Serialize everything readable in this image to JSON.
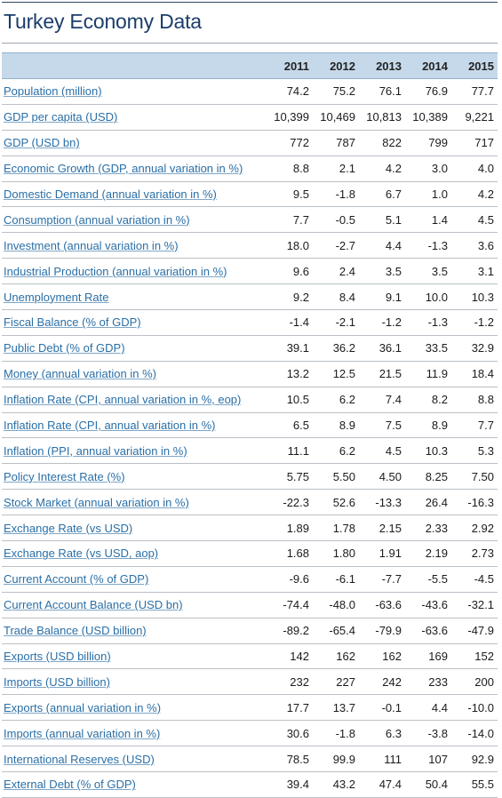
{
  "title": "Turkey Economy Data",
  "years": [
    "2011",
    "2012",
    "2013",
    "2014",
    "2015"
  ],
  "rows": [
    {
      "label": "Population (million)",
      "values": [
        "74.2",
        "75.2",
        "76.1",
        "76.9",
        "77.7"
      ]
    },
    {
      "label": "GDP per capita (USD)",
      "values": [
        "10,399",
        "10,469",
        "10,813",
        "10,389",
        "9,221"
      ]
    },
    {
      "label": "GDP (USD bn)",
      "values": [
        "772",
        "787",
        "822",
        "799",
        "717"
      ]
    },
    {
      "label": "Economic Growth (GDP, annual variation in %)",
      "values": [
        "8.8",
        "2.1",
        "4.2",
        "3.0",
        "4.0"
      ]
    },
    {
      "label": "Domestic Demand (annual variation in %)",
      "values": [
        "9.5",
        "-1.8",
        "6.7",
        "1.0",
        "4.2"
      ]
    },
    {
      "label": "Consumption (annual variation in %)",
      "values": [
        "7.7",
        "-0.5",
        "5.1",
        "1.4",
        "4.5"
      ]
    },
    {
      "label": "Investment (annual variation in %)",
      "values": [
        "18.0",
        "-2.7",
        "4.4",
        "-1.3",
        "3.6"
      ]
    },
    {
      "label": "Industrial Production (annual variation in %)",
      "values": [
        "9.6",
        "2.4",
        "3.5",
        "3.5",
        "3.1"
      ]
    },
    {
      "label": "Unemployment Rate",
      "values": [
        "9.2",
        "8.4",
        "9.1",
        "10.0",
        "10.3"
      ]
    },
    {
      "label": "Fiscal Balance (% of GDP)",
      "values": [
        "-1.4",
        "-2.1",
        "-1.2",
        "-1.3",
        "-1.2"
      ]
    },
    {
      "label": "Public Debt (% of GDP)",
      "values": [
        "39.1",
        "36.2",
        "36.1",
        "33.5",
        "32.9"
      ]
    },
    {
      "label": "Money (annual variation in %)",
      "values": [
        "13.2",
        "12.5",
        "21.5",
        "11.9",
        "18.4"
      ]
    },
    {
      "label": "Inflation Rate (CPI, annual variation in %, eop)",
      "values": [
        "10.5",
        "6.2",
        "7.4",
        "8.2",
        "8.8"
      ]
    },
    {
      "label": "Inflation Rate (CPI, annual variation in %)",
      "values": [
        "6.5",
        "8.9",
        "7.5",
        "8.9",
        "7.7"
      ]
    },
    {
      "label": "Inflation (PPI, annual variation in %)",
      "values": [
        "11.1",
        "6.2",
        "4.5",
        "10.3",
        "5.3"
      ]
    },
    {
      "label": "Policy Interest Rate (%)",
      "values": [
        "5.75",
        "5.50",
        "4.50",
        "8.25",
        "7.50"
      ]
    },
    {
      "label": "Stock Market (annual variation in %)",
      "values": [
        "-22.3",
        "52.6",
        "-13.3",
        "26.4",
        "-16.3"
      ]
    },
    {
      "label": "Exchange Rate (vs USD)",
      "values": [
        "1.89",
        "1.78",
        "2.15",
        "2.33",
        "2.92"
      ]
    },
    {
      "label": "Exchange Rate (vs USD, aop)",
      "values": [
        "1.68",
        "1.80",
        "1.91",
        "2.19",
        "2.73"
      ]
    },
    {
      "label": "Current Account (% of GDP)",
      "values": [
        "-9.6",
        "-6.1",
        "-7.7",
        "-5.5",
        "-4.5"
      ]
    },
    {
      "label": "Current Account Balance (USD bn)",
      "values": [
        "-74.4",
        "-48.0",
        "-63.6",
        "-43.6",
        "-32.1"
      ]
    },
    {
      "label": "Trade Balance (USD billion)",
      "values": [
        "-89.2",
        "-65.4",
        "-79.9",
        "-63.6",
        "-47.9"
      ]
    },
    {
      "label": "Exports (USD billion)",
      "values": [
        "142",
        "162",
        "162",
        "169",
        "152"
      ]
    },
    {
      "label": "Imports (USD billion)",
      "values": [
        "232",
        "227",
        "242",
        "233",
        "200"
      ]
    },
    {
      "label": "Exports (annual variation in %)",
      "values": [
        "17.7",
        "13.7",
        "-0.1",
        "4.4",
        "-10.0"
      ]
    },
    {
      "label": "Imports (annual variation in %)",
      "values": [
        "30.6",
        "-1.8",
        "6.3",
        "-3.8",
        "-14.0"
      ]
    },
    {
      "label": "International Reserves (USD)",
      "values": [
        "78.5",
        "99.9",
        "111",
        "107",
        "92.9"
      ]
    },
    {
      "label": "External Debt (% of GDP)",
      "values": [
        "39.4",
        "43.2",
        "47.4",
        "50.4",
        "55.5"
      ]
    }
  ]
}
